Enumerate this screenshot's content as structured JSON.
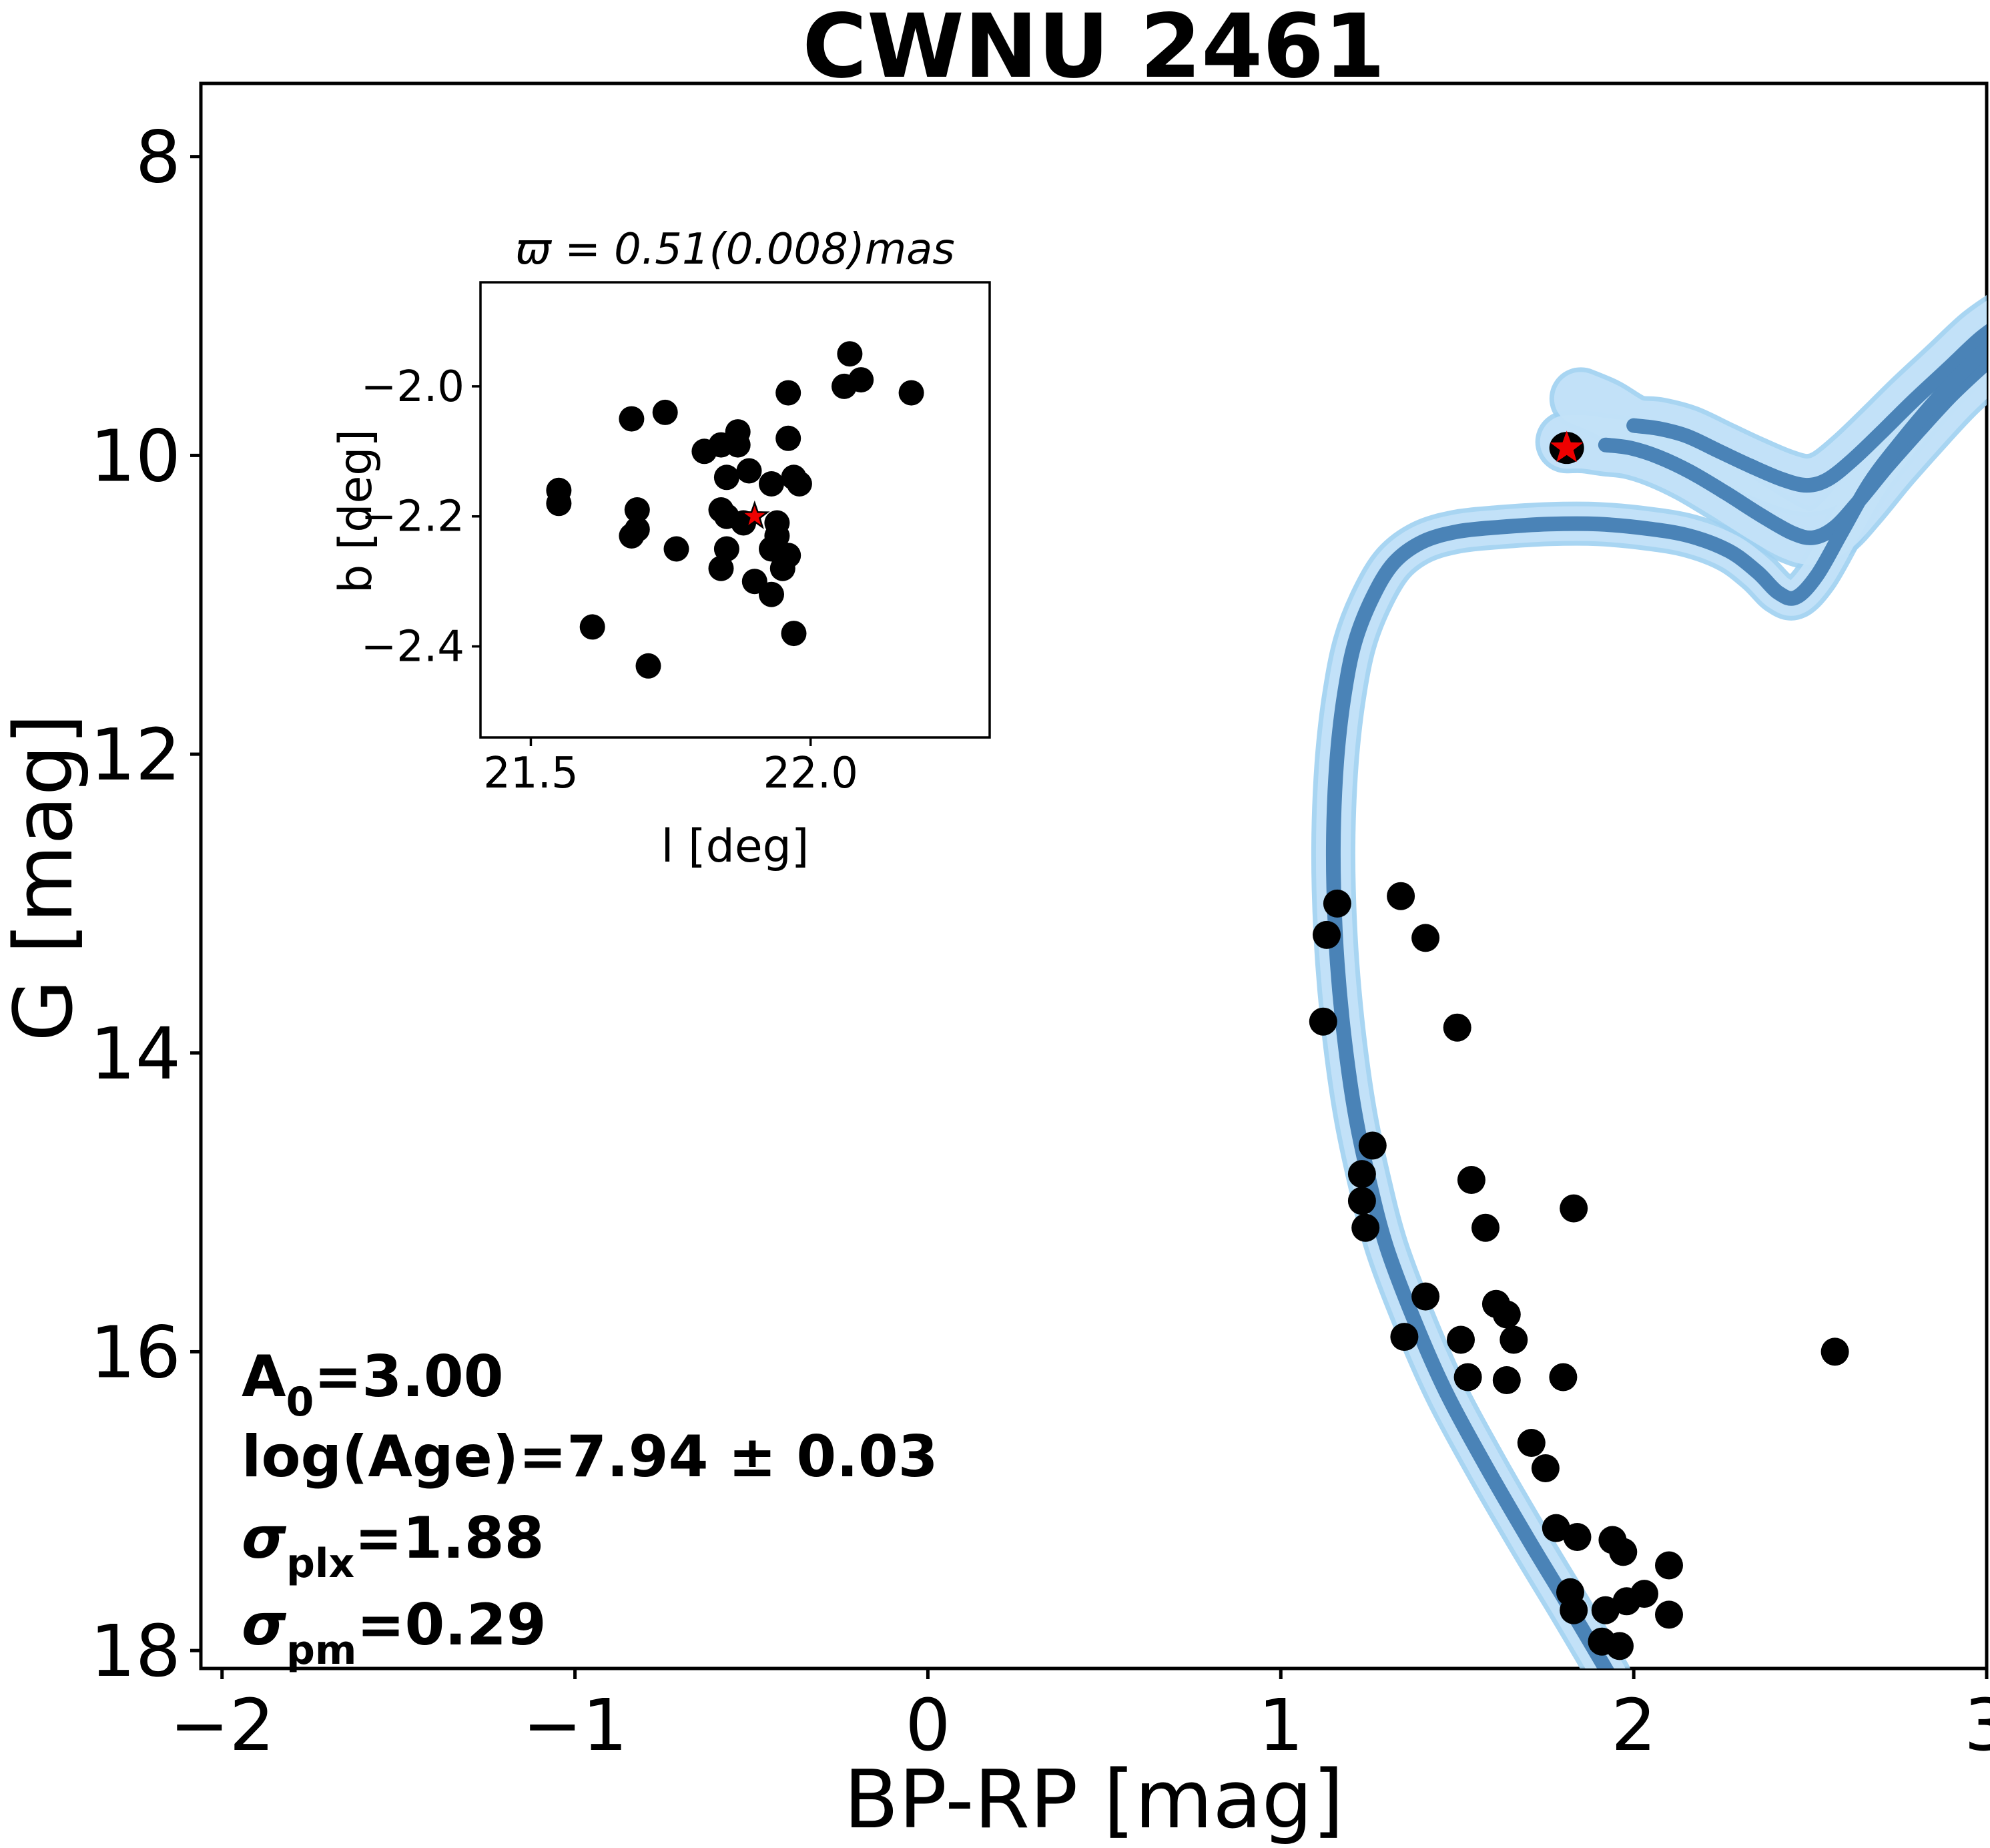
{
  "figure": {
    "title": "CWNU 2461",
    "annotations": [
      {
        "base": "A",
        "sub": "0",
        "rest": "=3.00"
      },
      {
        "base": "log(Age)",
        "sub": "",
        "rest": "=7.94 ± 0.03"
      },
      {
        "base": "σ",
        "sub": "plx",
        "rest": "=1.88"
      },
      {
        "base": "σ",
        "sub": "pm",
        "rest": "=0.29"
      }
    ]
  },
  "colors": {
    "scatter": "#000000",
    "red_star": "#ee0000",
    "star_edge": "#000000",
    "iso_line": "#4a83b7",
    "iso_band": "#c3e1f8",
    "iso_band_edge": "#9fd0f1",
    "axes": "#000000"
  },
  "chart_data": [
    {
      "type": "scatter",
      "title": "CWNU 2461",
      "xlabel": "BP-RP [mag]",
      "ylabel": "G [mag]",
      "xlim": [
        -2.06,
        3.0
      ],
      "ylim": [
        18.12,
        7.51
      ],
      "grid": false,
      "legend": "none",
      "xticks": [
        {
          "v": -2,
          "label": "−2"
        },
        {
          "v": -1,
          "label": "−1"
        },
        {
          "v": 0,
          "label": "0"
        },
        {
          "v": 1,
          "label": "1"
        },
        {
          "v": 2,
          "label": "2"
        },
        {
          "v": 3,
          "label": "3"
        }
      ],
      "yticks": [
        {
          "v": 8,
          "label": "8"
        },
        {
          "v": 10,
          "label": "10"
        },
        {
          "v": 12,
          "label": "12"
        },
        {
          "v": 14,
          "label": "14"
        },
        {
          "v": 16,
          "label": "16"
        },
        {
          "v": 18,
          "label": "18"
        }
      ],
      "points": [
        [
          1.16,
          13.0
        ],
        [
          1.13,
          13.21
        ],
        [
          1.34,
          12.95
        ],
        [
          1.41,
          13.23
        ],
        [
          1.12,
          13.79
        ],
        [
          1.5,
          13.83
        ],
        [
          1.26,
          14.62
        ],
        [
          1.23,
          14.81
        ],
        [
          1.23,
          14.99
        ],
        [
          1.24,
          15.17
        ],
        [
          1.54,
          14.85
        ],
        [
          1.58,
          15.17
        ],
        [
          1.83,
          15.04
        ],
        [
          1.41,
          15.63
        ],
        [
          1.61,
          15.68
        ],
        [
          1.64,
          15.75
        ],
        [
          1.35,
          15.9
        ],
        [
          1.51,
          15.92
        ],
        [
          1.66,
          15.92
        ],
        [
          1.53,
          16.17
        ],
        [
          1.64,
          16.19
        ],
        [
          1.8,
          16.17
        ],
        [
          1.71,
          16.61
        ],
        [
          1.75,
          16.78
        ],
        [
          1.78,
          17.18
        ],
        [
          1.84,
          17.24
        ],
        [
          1.94,
          17.26
        ],
        [
          1.97,
          17.34
        ],
        [
          2.1,
          17.43
        ],
        [
          1.82,
          17.61
        ],
        [
          1.83,
          17.73
        ],
        [
          1.92,
          17.73
        ],
        [
          1.98,
          17.67
        ],
        [
          2.03,
          17.62
        ],
        [
          2.1,
          17.76
        ],
        [
          1.91,
          17.94
        ],
        [
          1.96,
          17.97
        ],
        [
          2.57,
          16.0
        ]
      ],
      "red_star": {
        "x": 1.81,
        "y": 9.95
      },
      "isochrones": {
        "curves": [
          {
            "name": "age_minus_sigma",
            "band_width": 80,
            "band_lead": [
              [
                1.85,
                9.62
              ],
              [
                1.92,
                9.69
              ]
            ],
            "line": [
              [
                2.0,
                9.8
              ],
              [
                2.07,
                9.82
              ],
              [
                2.15,
                9.87
              ],
              [
                2.24,
                9.97
              ],
              [
                2.33,
                10.07
              ],
              [
                2.42,
                10.16
              ],
              [
                2.49,
                10.2
              ],
              [
                2.55,
                10.16
              ],
              [
                2.62,
                10.03
              ],
              [
                2.7,
                9.85
              ],
              [
                2.79,
                9.64
              ],
              [
                2.89,
                9.42
              ],
              [
                2.98,
                9.22
              ],
              [
                3.05,
                9.1
              ]
            ]
          },
          {
            "name": "age_plus_sigma",
            "band_width": 80,
            "band_lead": [
              [
                1.81,
                9.91
              ],
              [
                1.86,
                9.91
              ]
            ],
            "line": [
              [
                1.92,
                9.93
              ],
              [
                1.99,
                9.95
              ],
              [
                2.07,
                10.01
              ],
              [
                2.16,
                10.11
              ],
              [
                2.26,
                10.25
              ],
              [
                2.36,
                10.4
              ],
              [
                2.45,
                10.52
              ],
              [
                2.51,
                10.55
              ],
              [
                2.57,
                10.48
              ],
              [
                2.64,
                10.3
              ],
              [
                2.72,
                10.07
              ],
              [
                2.81,
                9.83
              ],
              [
                2.9,
                9.6
              ],
              [
                2.99,
                9.4
              ],
              [
                3.05,
                9.28
              ]
            ]
          },
          {
            "name": "best_fit",
            "band_width": 52,
            "band_lead": [],
            "line": [
              [
                1.93,
                18.16
              ],
              [
                1.82,
                17.72
              ],
              [
                1.7,
                17.25
              ],
              [
                1.58,
                16.76
              ],
              [
                1.47,
                16.28
              ],
              [
                1.38,
                15.8
              ],
              [
                1.3,
                15.3
              ],
              [
                1.25,
                14.85
              ],
              [
                1.21,
                14.4
              ],
              [
                1.18,
                13.9
              ],
              [
                1.16,
                13.4
              ],
              [
                1.15,
                12.9
              ],
              [
                1.15,
                12.45
              ],
              [
                1.16,
                12.0
              ],
              [
                1.18,
                11.6
              ],
              [
                1.21,
                11.25
              ],
              [
                1.26,
                10.95
              ],
              [
                1.32,
                10.72
              ],
              [
                1.4,
                10.58
              ],
              [
                1.5,
                10.51
              ],
              [
                1.62,
                10.48
              ],
              [
                1.76,
                10.46
              ],
              [
                1.9,
                10.46
              ],
              [
                2.04,
                10.49
              ],
              [
                2.16,
                10.54
              ],
              [
                2.27,
                10.64
              ],
              [
                2.35,
                10.78
              ],
              [
                2.41,
                10.92
              ],
              [
                2.46,
                10.95
              ],
              [
                2.52,
                10.8
              ],
              [
                2.59,
                10.51
              ],
              [
                2.67,
                10.18
              ],
              [
                2.76,
                9.9
              ],
              [
                2.86,
                9.62
              ],
              [
                2.95,
                9.4
              ],
              [
                3.05,
                9.16
              ]
            ]
          }
        ]
      }
    },
    {
      "type": "scatter",
      "title": "ϖ = 0.51(0.008)mas",
      "xlabel": "l [deg]",
      "ylabel": "b [deg]",
      "xlim": [
        21.41,
        22.32
      ],
      "ylim": [
        -2.54,
        -1.84
      ],
      "grid": false,
      "legend": "none",
      "xticks": [
        {
          "v": 21.5,
          "label": "21.5"
        },
        {
          "v": 22.0,
          "label": "22.0"
        }
      ],
      "yticks": [
        {
          "v": -2.0,
          "label": "−2.0"
        },
        {
          "v": -2.2,
          "label": "−2.2"
        },
        {
          "v": -2.4,
          "label": "−2.4"
        }
      ],
      "points": [
        [
          22.07,
          -1.95
        ],
        [
          22.06,
          -2.0
        ],
        [
          22.09,
          -1.99
        ],
        [
          22.18,
          -2.01
        ],
        [
          21.96,
          -2.01
        ],
        [
          21.68,
          -2.05
        ],
        [
          21.74,
          -2.04
        ],
        [
          21.87,
          -2.07
        ],
        [
          21.84,
          -2.09
        ],
        [
          21.81,
          -2.1
        ],
        [
          21.87,
          -2.09
        ],
        [
          21.96,
          -2.08
        ],
        [
          21.85,
          -2.14
        ],
        [
          21.89,
          -2.13
        ],
        [
          21.93,
          -2.15
        ],
        [
          21.97,
          -2.14
        ],
        [
          21.98,
          -2.15
        ],
        [
          21.55,
          -2.16
        ],
        [
          21.55,
          -2.18
        ],
        [
          21.69,
          -2.19
        ],
        [
          21.84,
          -2.19
        ],
        [
          21.85,
          -2.2
        ],
        [
          21.88,
          -2.21
        ],
        [
          21.94,
          -2.21
        ],
        [
          21.94,
          -2.23
        ],
        [
          21.68,
          -2.23
        ],
        [
          21.69,
          -2.22
        ],
        [
          21.76,
          -2.25
        ],
        [
          21.93,
          -2.25
        ],
        [
          21.85,
          -2.25
        ],
        [
          21.84,
          -2.28
        ],
        [
          21.95,
          -2.28
        ],
        [
          21.96,
          -2.26
        ],
        [
          21.9,
          -2.3
        ],
        [
          21.93,
          -2.32
        ],
        [
          21.61,
          -2.37
        ],
        [
          21.97,
          -2.38
        ],
        [
          21.71,
          -2.43
        ]
      ],
      "red_star": {
        "x": 21.9,
        "y": -2.2
      }
    }
  ]
}
